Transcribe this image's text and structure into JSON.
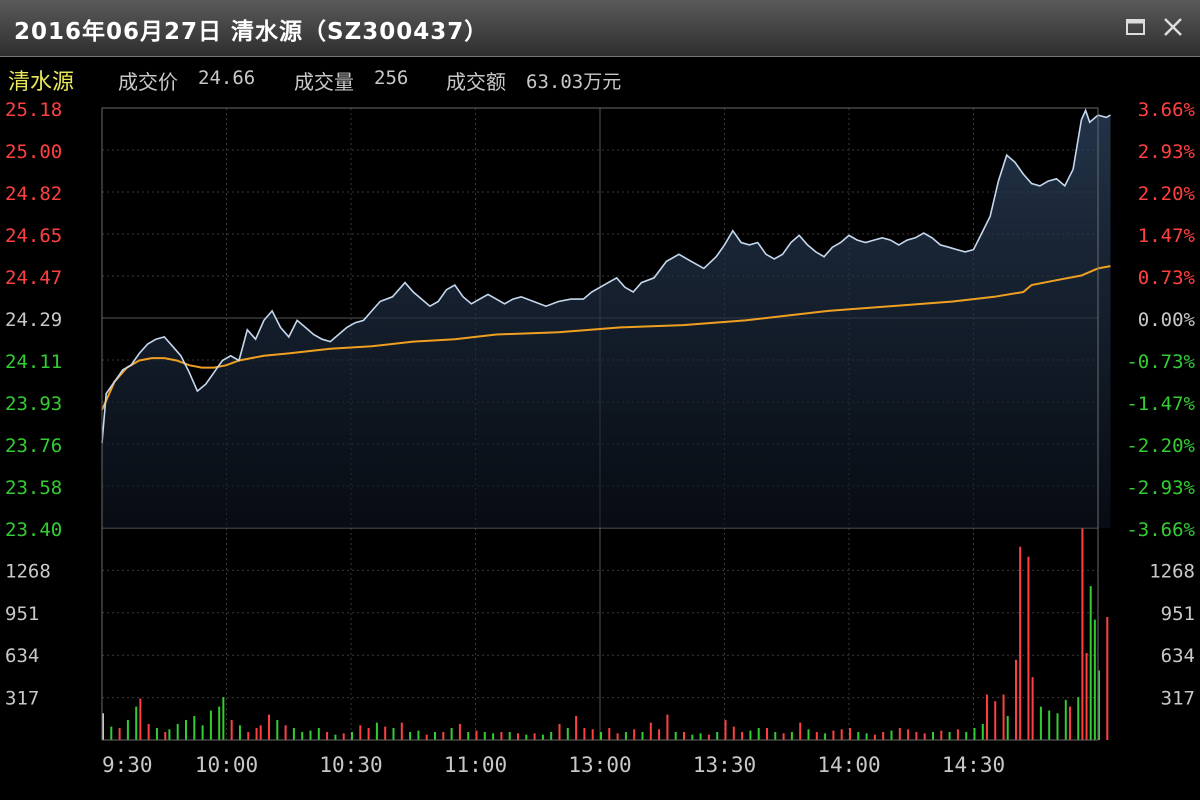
{
  "window": {
    "title": "2016年06月27日  清水源（SZ300437）",
    "buttons": [
      "maximize-icon",
      "close-icon"
    ]
  },
  "info": {
    "name": "清水源",
    "price_label": "成交价",
    "price_value": "24.66",
    "volume_label": "成交量",
    "volume_value": "256",
    "amount_label": "成交额",
    "amount_value": "63.03万元"
  },
  "colors": {
    "up": "#ff4040",
    "down": "#33cc33",
    "flat": "#c8c8c8",
    "price_line": "#c6d8ee",
    "avg_line": "#f0a020",
    "grid": "#3a3a3a",
    "frame": "#6a6a6a"
  },
  "chart_data": {
    "type": "line",
    "prev_close": 24.29,
    "price_axis": {
      "ylim": [
        23.4,
        25.18
      ],
      "ticks": [
        "25.18",
        "25.00",
        "24.82",
        "24.65",
        "24.47",
        "24.29",
        "24.11",
        "23.93",
        "23.76",
        "23.58",
        "23.40"
      ]
    },
    "pct_axis": {
      "ticks": [
        "3.66%",
        "2.93%",
        "2.20%",
        "1.47%",
        "0.73%",
        "0.00%",
        "-0.73%",
        "-1.47%",
        "-2.20%",
        "-2.93%",
        "-3.66%"
      ]
    },
    "volume_axis": {
      "ylim": [
        0,
        1585
      ],
      "ticks": [
        "1268",
        "951",
        "634",
        "317"
      ]
    },
    "x_ticks": [
      "9:30",
      "10:00",
      "10:30",
      "11:00",
      "13:00",
      "13:30",
      "14:00",
      "14:30"
    ],
    "minutes_total": 240,
    "price_series": [
      [
        0,
        23.76
      ],
      [
        1,
        23.97
      ],
      [
        3,
        24.02
      ],
      [
        5,
        24.07
      ],
      [
        7,
        24.09
      ],
      [
        9,
        24.14
      ],
      [
        11,
        24.18
      ],
      [
        13,
        24.2
      ],
      [
        15,
        24.21
      ],
      [
        17,
        24.17
      ],
      [
        19,
        24.13
      ],
      [
        21,
        24.06
      ],
      [
        23,
        23.98
      ],
      [
        25,
        24.01
      ],
      [
        27,
        24.06
      ],
      [
        29,
        24.11
      ],
      [
        31,
        24.13
      ],
      [
        33,
        24.11
      ],
      [
        35,
        24.24
      ],
      [
        37,
        24.2
      ],
      [
        39,
        24.28
      ],
      [
        41,
        24.32
      ],
      [
        43,
        24.25
      ],
      [
        45,
        24.21
      ],
      [
        47,
        24.28
      ],
      [
        49,
        24.25
      ],
      [
        51,
        24.22
      ],
      [
        53,
        24.2
      ],
      [
        55,
        24.19
      ],
      [
        57,
        24.22
      ],
      [
        59,
        24.25
      ],
      [
        61,
        24.27
      ],
      [
        63,
        24.28
      ],
      [
        65,
        24.32
      ],
      [
        67,
        24.36
      ],
      [
        70,
        24.38
      ],
      [
        73,
        24.44
      ],
      [
        75,
        24.4
      ],
      [
        77,
        24.37
      ],
      [
        79,
        24.34
      ],
      [
        81,
        24.36
      ],
      [
        83,
        24.41
      ],
      [
        85,
        24.43
      ],
      [
        87,
        24.38
      ],
      [
        89,
        24.35
      ],
      [
        91,
        24.37
      ],
      [
        93,
        24.39
      ],
      [
        95,
        24.37
      ],
      [
        97,
        24.35
      ],
      [
        99,
        24.37
      ],
      [
        101,
        24.38
      ],
      [
        104,
        24.36
      ],
      [
        107,
        24.34
      ],
      [
        110,
        24.36
      ],
      [
        113,
        24.37
      ],
      [
        116,
        24.37
      ],
      [
        118,
        24.4
      ],
      [
        120,
        24.42
      ],
      [
        122,
        24.44
      ],
      [
        124,
        24.46
      ],
      [
        126,
        24.42
      ],
      [
        128,
        24.4
      ],
      [
        130,
        24.44
      ],
      [
        133,
        24.46
      ],
      [
        136,
        24.53
      ],
      [
        139,
        24.56
      ],
      [
        142,
        24.53
      ],
      [
        145,
        24.5
      ],
      [
        148,
        24.55
      ],
      [
        150,
        24.6
      ],
      [
        152,
        24.66
      ],
      [
        154,
        24.61
      ],
      [
        156,
        24.6
      ],
      [
        158,
        24.61
      ],
      [
        160,
        24.56
      ],
      [
        162,
        24.54
      ],
      [
        164,
        24.56
      ],
      [
        166,
        24.61
      ],
      [
        168,
        24.64
      ],
      [
        170,
        24.6
      ],
      [
        172,
        24.57
      ],
      [
        174,
        24.55
      ],
      [
        176,
        24.59
      ],
      [
        178,
        24.61
      ],
      [
        180,
        24.64
      ],
      [
        182,
        24.62
      ],
      [
        184,
        24.61
      ],
      [
        186,
        24.62
      ],
      [
        188,
        24.63
      ],
      [
        190,
        24.62
      ],
      [
        192,
        24.6
      ],
      [
        194,
        24.62
      ],
      [
        196,
        24.63
      ],
      [
        198,
        24.65
      ],
      [
        200,
        24.63
      ],
      [
        202,
        24.6
      ],
      [
        204,
        24.59
      ],
      [
        206,
        24.58
      ],
      [
        208,
        24.57
      ],
      [
        210,
        24.58
      ],
      [
        212,
        24.65
      ],
      [
        214,
        24.72
      ],
      [
        216,
        24.87
      ],
      [
        218,
        24.98
      ],
      [
        220,
        24.95
      ],
      [
        222,
        24.9
      ],
      [
        224,
        24.86
      ],
      [
        226,
        24.85
      ],
      [
        228,
        24.87
      ],
      [
        230,
        24.88
      ],
      [
        232,
        24.85
      ],
      [
        234,
        24.92
      ],
      [
        236,
        25.13
      ],
      [
        237,
        25.17
      ],
      [
        238,
        25.12
      ],
      [
        240,
        25.15
      ],
      [
        242,
        25.14
      ],
      [
        243,
        25.15
      ]
    ],
    "avg_series": [
      [
        0,
        23.9
      ],
      [
        3,
        24.02
      ],
      [
        6,
        24.08
      ],
      [
        9,
        24.11
      ],
      [
        12,
        24.12
      ],
      [
        15,
        24.12
      ],
      [
        18,
        24.11
      ],
      [
        21,
        24.09
      ],
      [
        24,
        24.08
      ],
      [
        27,
        24.08
      ],
      [
        30,
        24.09
      ],
      [
        33,
        24.11
      ],
      [
        36,
        24.12
      ],
      [
        39,
        24.13
      ],
      [
        45,
        24.14
      ],
      [
        55,
        24.16
      ],
      [
        65,
        24.17
      ],
      [
        75,
        24.19
      ],
      [
        85,
        24.2
      ],
      [
        95,
        24.22
      ],
      [
        110,
        24.23
      ],
      [
        125,
        24.25
      ],
      [
        140,
        24.26
      ],
      [
        155,
        24.28
      ],
      [
        165,
        24.3
      ],
      [
        175,
        24.32
      ],
      [
        190,
        24.34
      ],
      [
        205,
        24.36
      ],
      [
        215,
        24.38
      ],
      [
        222,
        24.4
      ],
      [
        224,
        24.43
      ],
      [
        230,
        24.45
      ],
      [
        236,
        24.47
      ],
      [
        240,
        24.5
      ],
      [
        243,
        24.51
      ]
    ],
    "volume_bars": [
      [
        0,
        "#c8c8c8",
        200
      ],
      [
        2,
        "#33cc33",
        100
      ],
      [
        4,
        "#ff4040",
        90
      ],
      [
        6,
        "#33cc33",
        150
      ],
      [
        8,
        "#33cc33",
        250
      ],
      [
        9,
        "#ff4040",
        310
      ],
      [
        11,
        "#ff4040",
        120
      ],
      [
        13,
        "#33cc33",
        90
      ],
      [
        15,
        "#ff4040",
        60
      ],
      [
        16,
        "#33cc33",
        80
      ],
      [
        18,
        "#33cc33",
        120
      ],
      [
        20,
        "#33cc33",
        150
      ],
      [
        22,
        "#33cc33",
        180
      ],
      [
        24,
        "#33cc33",
        110
      ],
      [
        26,
        "#33cc33",
        220
      ],
      [
        28,
        "#33cc33",
        250
      ],
      [
        29,
        "#33cc33",
        320
      ],
      [
        31,
        "#ff4040",
        150
      ],
      [
        33,
        "#33cc33",
        110
      ],
      [
        35,
        "#ff4040",
        60
      ],
      [
        37,
        "#ff4040",
        90
      ],
      [
        38,
        "#ff4040",
        110
      ],
      [
        40,
        "#ff4040",
        190
      ],
      [
        42,
        "#33cc33",
        150
      ],
      [
        44,
        "#ff4040",
        110
      ],
      [
        46,
        "#33cc33",
        90
      ],
      [
        48,
        "#33cc33",
        60
      ],
      [
        50,
        "#33cc33",
        70
      ],
      [
        52,
        "#33cc33",
        90
      ],
      [
        54,
        "#ff4040",
        60
      ],
      [
        56,
        "#33cc33",
        40
      ],
      [
        58,
        "#ff4040",
        50
      ],
      [
        60,
        "#33cc33",
        60
      ],
      [
        62,
        "#ff4040",
        110
      ],
      [
        64,
        "#ff4040",
        90
      ],
      [
        66,
        "#33cc33",
        130
      ],
      [
        68,
        "#ff4040",
        100
      ],
      [
        70,
        "#33cc33",
        90
      ],
      [
        72,
        "#ff4040",
        130
      ],
      [
        74,
        "#33cc33",
        60
      ],
      [
        76,
        "#33cc33",
        70
      ],
      [
        78,
        "#ff4040",
        40
      ],
      [
        80,
        "#33cc33",
        60
      ],
      [
        82,
        "#ff4040",
        60
      ],
      [
        84,
        "#33cc33",
        90
      ],
      [
        86,
        "#ff4040",
        120
      ],
      [
        88,
        "#33cc33",
        60
      ],
      [
        90,
        "#ff4040",
        70
      ],
      [
        92,
        "#33cc33",
        60
      ],
      [
        94,
        "#33cc33",
        50
      ],
      [
        96,
        "#ff4040",
        60
      ],
      [
        98,
        "#33cc33",
        60
      ],
      [
        100,
        "#ff4040",
        50
      ],
      [
        102,
        "#33cc33",
        40
      ],
      [
        104,
        "#ff4040",
        50
      ],
      [
        106,
        "#33cc33",
        40
      ],
      [
        108,
        "#33cc33",
        60
      ],
      [
        110,
        "#ff4040",
        120
      ],
      [
        112,
        "#33cc33",
        90
      ],
      [
        114,
        "#ff4040",
        180
      ],
      [
        116,
        "#ff4040",
        90
      ],
      [
        118,
        "#ff4040",
        80
      ],
      [
        120,
        "#33cc33",
        60
      ],
      [
        122,
        "#ff4040",
        90
      ],
      [
        124,
        "#ff4040",
        50
      ],
      [
        126,
        "#33cc33",
        60
      ],
      [
        128,
        "#ff4040",
        80
      ],
      [
        130,
        "#33cc33",
        60
      ],
      [
        132,
        "#ff4040",
        130
      ],
      [
        134,
        "#ff4040",
        80
      ],
      [
        136,
        "#ff4040",
        190
      ],
      [
        138,
        "#33cc33",
        60
      ],
      [
        140,
        "#ff4040",
        60
      ],
      [
        142,
        "#33cc33",
        40
      ],
      [
        144,
        "#33cc33",
        50
      ],
      [
        146,
        "#ff4040",
        40
      ],
      [
        148,
        "#33cc33",
        60
      ],
      [
        150,
        "#ff4040",
        150
      ],
      [
        152,
        "#ff4040",
        100
      ],
      [
        154,
        "#ff4040",
        60
      ],
      [
        156,
        "#33cc33",
        70
      ],
      [
        158,
        "#33cc33",
        90
      ],
      [
        160,
        "#ff4040",
        90
      ],
      [
        162,
        "#33cc33",
        60
      ],
      [
        164,
        "#ff4040",
        50
      ],
      [
        166,
        "#33cc33",
        60
      ],
      [
        168,
        "#ff4040",
        130
      ],
      [
        170,
        "#33cc33",
        80
      ],
      [
        172,
        "#ff4040",
        60
      ],
      [
        174,
        "#33cc33",
        50
      ],
      [
        176,
        "#ff4040",
        70
      ],
      [
        178,
        "#ff4040",
        80
      ],
      [
        180,
        "#ff4040",
        90
      ],
      [
        182,
        "#33cc33",
        60
      ],
      [
        184,
        "#33cc33",
        50
      ],
      [
        186,
        "#ff4040",
        40
      ],
      [
        188,
        "#ff4040",
        60
      ],
      [
        190,
        "#33cc33",
        70
      ],
      [
        192,
        "#ff4040",
        90
      ],
      [
        194,
        "#ff4040",
        80
      ],
      [
        196,
        "#ff4040",
        60
      ],
      [
        198,
        "#ff4040",
        50
      ],
      [
        200,
        "#33cc33",
        60
      ],
      [
        202,
        "#ff4040",
        70
      ],
      [
        204,
        "#33cc33",
        60
      ],
      [
        206,
        "#ff4040",
        80
      ],
      [
        208,
        "#33cc33",
        60
      ],
      [
        210,
        "#33cc33",
        90
      ],
      [
        212,
        "#33cc33",
        120
      ],
      [
        213,
        "#ff4040",
        340
      ],
      [
        215,
        "#ff4040",
        290
      ],
      [
        217,
        "#ff4040",
        340
      ],
      [
        218,
        "#33cc33",
        180
      ],
      [
        220,
        "#ff4040",
        600
      ],
      [
        221,
        "#ff4040",
        1445
      ],
      [
        223,
        "#ff4040",
        1370
      ],
      [
        224,
        "#ff4040",
        470
      ],
      [
        226,
        "#33cc33",
        250
      ],
      [
        228,
        "#33cc33",
        220
      ],
      [
        230,
        "#33cc33",
        200
      ],
      [
        232,
        "#33cc33",
        300
      ],
      [
        233,
        "#ff4040",
        250
      ],
      [
        235,
        "#33cc33",
        320
      ],
      [
        236,
        "#ff4040",
        1580
      ],
      [
        237,
        "#ff4040",
        650
      ],
      [
        238,
        "#33cc33",
        1150
      ],
      [
        239,
        "#33cc33",
        900
      ],
      [
        240,
        "#33cc33",
        520
      ],
      [
        242,
        "#ff4040",
        920
      ]
    ]
  }
}
